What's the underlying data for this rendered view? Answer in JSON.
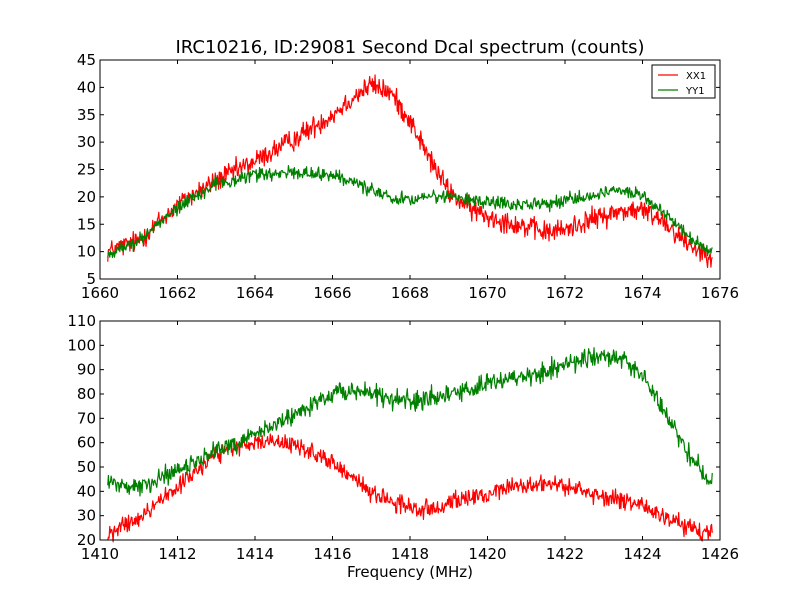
{
  "chart_data": [
    {
      "type": "line",
      "title": "IRC10216, ID:29081 Second Dcal spectrum (counts)",
      "xlabel": "",
      "ylabel": "",
      "xlim": [
        1660,
        1676
      ],
      "ylim": [
        5,
        45
      ],
      "xticks": [
        1660,
        1662,
        1664,
        1666,
        1668,
        1670,
        1672,
        1674,
        1676
      ],
      "yticks": [
        5,
        10,
        15,
        20,
        25,
        30,
        35,
        40,
        45
      ],
      "grid": false,
      "legend": "top-right",
      "x_range": [
        1660.2,
        1675.8
      ],
      "series": [
        {
          "name": "XX1",
          "color": "#ff0000",
          "points": [
            [
              1660.2,
              10
            ],
            [
              1661.0,
              12
            ],
            [
              1662.0,
              18.5
            ],
            [
              1663.0,
              23
            ],
            [
              1664.0,
              26.5
            ],
            [
              1665.0,
              30.5
            ],
            [
              1666.0,
              35
            ],
            [
              1666.5,
              38
            ],
            [
              1667.0,
              40.5
            ],
            [
              1667.5,
              39
            ],
            [
              1668.0,
              34
            ],
            [
              1668.5,
              27
            ],
            [
              1669.0,
              21
            ],
            [
              1669.5,
              18
            ],
            [
              1670.0,
              16.5
            ],
            [
              1670.5,
              15.5
            ],
            [
              1671.0,
              14.5
            ],
            [
              1671.5,
              13.5
            ],
            [
              1672.0,
              14
            ],
            [
              1672.5,
              15.5
            ],
            [
              1673.0,
              16.5
            ],
            [
              1673.5,
              17.5
            ],
            [
              1674.0,
              17.5
            ],
            [
              1674.5,
              16
            ],
            [
              1675.0,
              12.5
            ],
            [
              1675.5,
              10
            ],
            [
              1675.8,
              9.5
            ]
          ],
          "noise": 1.0
        },
        {
          "name": "YY1",
          "color": "#008000",
          "points": [
            [
              1660.2,
              9.5
            ],
            [
              1661.0,
              12
            ],
            [
              1662.0,
              18
            ],
            [
              1663.0,
              22.5
            ],
            [
              1664.0,
              24
            ],
            [
              1665.0,
              24.5
            ],
            [
              1666.0,
              24
            ],
            [
              1666.5,
              23
            ],
            [
              1667.0,
              21
            ],
            [
              1667.5,
              20
            ],
            [
              1668.0,
              19.5
            ],
            [
              1668.5,
              20
            ],
            [
              1669.0,
              20
            ],
            [
              1669.5,
              19.5
            ],
            [
              1670.0,
              19
            ],
            [
              1670.5,
              18.7
            ],
            [
              1671.0,
              18.5
            ],
            [
              1671.5,
              18.7
            ],
            [
              1672.0,
              19.5
            ],
            [
              1672.5,
              20
            ],
            [
              1673.0,
              21
            ],
            [
              1673.5,
              21
            ],
            [
              1674.0,
              20
            ],
            [
              1674.5,
              17.5
            ],
            [
              1675.0,
              14
            ],
            [
              1675.5,
              11
            ],
            [
              1675.8,
              10
            ]
          ],
          "noise": 0.6
        }
      ]
    },
    {
      "type": "line",
      "title": "",
      "xlabel": "Frequency (MHz)",
      "ylabel": "",
      "xlim": [
        1410,
        1426
      ],
      "ylim": [
        20,
        110
      ],
      "xticks": [
        1410,
        1412,
        1414,
        1416,
        1418,
        1420,
        1422,
        1424,
        1426
      ],
      "yticks": [
        20,
        30,
        40,
        50,
        60,
        70,
        80,
        90,
        100,
        110
      ],
      "grid": false,
      "legend": "none",
      "x_range": [
        1410.2,
        1425.8
      ],
      "series": [
        {
          "name": "",
          "color": "#ff0000",
          "points": [
            [
              1410.2,
              22
            ],
            [
              1411.0,
              29
            ],
            [
              1411.5,
              35
            ],
            [
              1412.0,
              42
            ],
            [
              1412.5,
              49
            ],
            [
              1413.0,
              55
            ],
            [
              1413.5,
              58
            ],
            [
              1414.0,
              60
            ],
            [
              1414.5,
              60.5
            ],
            [
              1415.0,
              59
            ],
            [
              1415.5,
              56
            ],
            [
              1416.0,
              51
            ],
            [
              1416.5,
              46
            ],
            [
              1417.0,
              40
            ],
            [
              1417.5,
              36
            ],
            [
              1418.0,
              33
            ],
            [
              1418.5,
              33
            ],
            [
              1419.0,
              35
            ],
            [
              1419.5,
              37
            ],
            [
              1420.0,
              39
            ],
            [
              1420.5,
              41.5
            ],
            [
              1421.0,
              43
            ],
            [
              1421.5,
              43
            ],
            [
              1422.0,
              42
            ],
            [
              1422.5,
              40
            ],
            [
              1423.0,
              38
            ],
            [
              1423.5,
              36
            ],
            [
              1424.0,
              34
            ],
            [
              1424.5,
              30
            ],
            [
              1425.0,
              26.5
            ],
            [
              1425.5,
              23
            ],
            [
              1425.8,
              23
            ]
          ],
          "noise": 1.8
        },
        {
          "name": "",
          "color": "#008000",
          "points": [
            [
              1410.2,
              43
            ],
            [
              1411.0,
              42
            ],
            [
              1411.5,
              44
            ],
            [
              1412.0,
              48
            ],
            [
              1412.5,
              52
            ],
            [
              1413.0,
              57
            ],
            [
              1413.5,
              60
            ],
            [
              1414.0,
              63
            ],
            [
              1414.5,
              67
            ],
            [
              1415.0,
              72
            ],
            [
              1415.5,
              76
            ],
            [
              1416.0,
              80
            ],
            [
              1416.5,
              81
            ],
            [
              1417.0,
              80
            ],
            [
              1417.5,
              78
            ],
            [
              1418.0,
              77
            ],
            [
              1418.5,
              78
            ],
            [
              1419.0,
              80
            ],
            [
              1419.5,
              82
            ],
            [
              1420.0,
              84
            ],
            [
              1420.5,
              86
            ],
            [
              1421.0,
              87
            ],
            [
              1421.5,
              89
            ],
            [
              1422.0,
              92
            ],
            [
              1422.5,
              95
            ],
            [
              1423.0,
              96
            ],
            [
              1423.5,
              94
            ],
            [
              1424.0,
              88
            ],
            [
              1424.5,
              75
            ],
            [
              1425.0,
              60
            ],
            [
              1425.5,
              49
            ],
            [
              1425.8,
              44
            ]
          ],
          "noise": 2.0
        }
      ]
    }
  ]
}
